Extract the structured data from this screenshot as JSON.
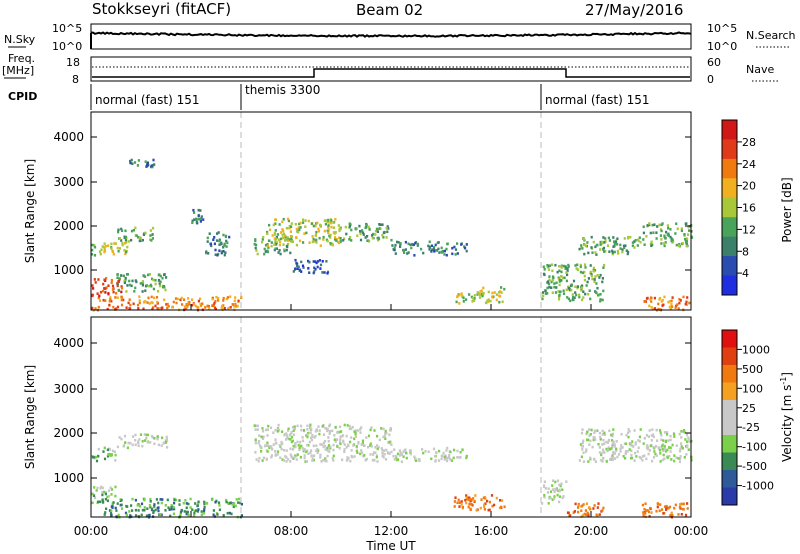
{
  "header": {
    "station": "Stokkseyri (fitACF)",
    "beam": "Beam 02",
    "date": "27/May/2016"
  },
  "noise_panel": {
    "left_label": "N.Sky",
    "right_label": "N.Search",
    "left_ticks": [
      "10^5",
      "10^0"
    ],
    "right_ticks": [
      "10^5",
      "10^0"
    ]
  },
  "freq_panel": {
    "left_label_1": "Freq.",
    "left_label_2": "[MHz]",
    "right_label": "Nave",
    "left_ticks": [
      "18",
      "8"
    ],
    "right_ticks": [
      "60",
      "0"
    ]
  },
  "cpid": {
    "label": "CPID",
    "segments": [
      {
        "name": "normal (fast) 151",
        "start_hour": 0
      },
      {
        "name": "themis 3300",
        "start_hour": 6
      },
      {
        "name": "normal (fast) 151",
        "start_hour": 18
      }
    ]
  },
  "power_panel": {
    "ylabel": "Slant Range [km]",
    "yticks": [
      "1000",
      "2000",
      "3000",
      "4000"
    ],
    "colorbar_label": "Power [dB]",
    "colorbar_ticks": [
      "28",
      "24",
      "20",
      "16",
      "12",
      "8",
      "4"
    ]
  },
  "velocity_panel": {
    "ylabel": "Slant Range [km]",
    "yticks": [
      "1000",
      "2000",
      "3000",
      "4000"
    ],
    "colorbar_label": "Velocity [m s",
    "colorbar_label_sup": "-1",
    "colorbar_label_end": "]",
    "colorbar_ticks": [
      "1000",
      "500",
      "100",
      "25",
      "-25",
      "-100",
      "-500",
      "-1000"
    ]
  },
  "xaxis": {
    "label": "Time UT",
    "ticks": [
      "00:00",
      "04:00",
      "08:00",
      "12:00",
      "16:00",
      "20:00",
      "00:00"
    ]
  },
  "colors": {
    "power_scale": [
      "#1f2fe0",
      "#2a4bb0",
      "#3c7f6a",
      "#4aa35a",
      "#a8c83a",
      "#f0b020",
      "#f07a10",
      "#e03a1a",
      "#d01818"
    ],
    "velocity_scale": [
      "#2a3aa8",
      "#2f5a9a",
      "#3a8a55",
      "#7ad04a",
      "#c8c8c8",
      "#c8c8c8",
      "#f4a020",
      "#f07a10",
      "#e04010",
      "#e01010"
    ]
  },
  "chart_data": {
    "type": "heatmap",
    "x_range_hours": [
      0,
      24
    ],
    "y_range_km": [
      180,
      4500
    ],
    "power_echo_regions": [
      {
        "t0": 0.0,
        "t1": 1.5,
        "r0": 1400,
        "r1": 1700,
        "level": 4
      },
      {
        "t0": 1.0,
        "t1": 2.5,
        "r0": 1700,
        "r1": 2000,
        "level": 3
      },
      {
        "t0": 0.0,
        "t1": 6.0,
        "r0": 200,
        "r1": 500,
        "level": 6
      },
      {
        "t0": 0.0,
        "t1": 1.2,
        "r0": 500,
        "r1": 900,
        "level": 7
      },
      {
        "t0": 1.0,
        "t1": 3.0,
        "r0": 600,
        "r1": 1000,
        "level": 3
      },
      {
        "t0": 1.5,
        "t1": 2.5,
        "r0": 3300,
        "r1": 3500,
        "level": 2
      },
      {
        "t0": 4.0,
        "t1": 4.5,
        "r0": 2100,
        "r1": 2400,
        "level": 2
      },
      {
        "t0": 4.5,
        "t1": 5.5,
        "r0": 1400,
        "r1": 1900,
        "level": 2
      },
      {
        "t0": 6.5,
        "t1": 8.0,
        "r0": 1400,
        "r1": 1800,
        "level": 3
      },
      {
        "t0": 7.0,
        "t1": 10.0,
        "r0": 1600,
        "r1": 2200,
        "level": 4
      },
      {
        "t0": 10.0,
        "t1": 12.0,
        "r0": 1700,
        "r1": 2100,
        "level": 3
      },
      {
        "t0": 8.0,
        "t1": 9.5,
        "r0": 1000,
        "r1": 1300,
        "level": 1
      },
      {
        "t0": 12.0,
        "t1": 15.0,
        "r0": 1400,
        "r1": 1700,
        "level": 2
      },
      {
        "t0": 14.5,
        "t1": 16.5,
        "r0": 350,
        "r1": 700,
        "level": 4
      },
      {
        "t0": 18.0,
        "t1": 20.5,
        "r0": 400,
        "r1": 1200,
        "level": 3
      },
      {
        "t0": 19.5,
        "t1": 22.0,
        "r0": 1400,
        "r1": 1800,
        "level": 3
      },
      {
        "t0": 22.0,
        "t1": 24.0,
        "r0": 1600,
        "r1": 2100,
        "level": 3
      },
      {
        "t0": 22.0,
        "t1": 24.0,
        "r0": 200,
        "r1": 500,
        "level": 6
      }
    ],
    "velocity_echo_regions": [
      {
        "t0": 0.0,
        "t1": 1.0,
        "r0": 1400,
        "r1": 1700,
        "level": 3
      },
      {
        "t0": 0.0,
        "t1": 1.0,
        "r0": 500,
        "r1": 900,
        "level": 3
      },
      {
        "t0": 0.5,
        "t1": 6.0,
        "r0": 200,
        "r1": 600,
        "level": 2
      },
      {
        "t0": 1.0,
        "t1": 3.0,
        "r0": 1700,
        "r1": 2000,
        "level": 4
      },
      {
        "t0": 6.5,
        "t1": 12.0,
        "r0": 1400,
        "r1": 2200,
        "level": 4
      },
      {
        "t0": 12.0,
        "t1": 15.0,
        "r0": 1400,
        "r1": 1700,
        "level": 4
      },
      {
        "t0": 14.5,
        "t1": 16.5,
        "r0": 350,
        "r1": 700,
        "level": 7
      },
      {
        "t0": 18.0,
        "t1": 19.0,
        "r0": 500,
        "r1": 1000,
        "level": 4
      },
      {
        "t0": 19.0,
        "t1": 20.5,
        "r0": 200,
        "r1": 500,
        "level": 7
      },
      {
        "t0": 19.5,
        "t1": 24.0,
        "r0": 1400,
        "r1": 2100,
        "level": 4
      },
      {
        "t0": 22.0,
        "t1": 24.0,
        "r0": 200,
        "r1": 500,
        "level": 7
      }
    ]
  }
}
